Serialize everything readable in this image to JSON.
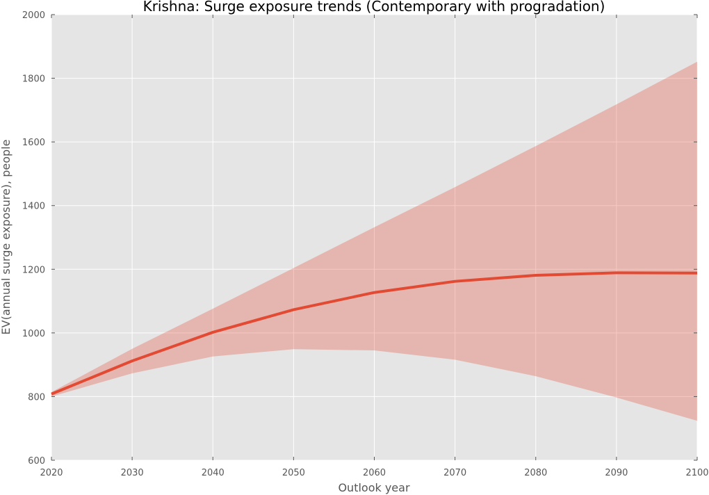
{
  "chart_data": {
    "type": "line",
    "title": "Krishna: Surge exposure trends (Contemporary with progradation)",
    "xlabel": "Outlook year",
    "ylabel": "EV(annual surge exposure), people",
    "xlim": [
      2020,
      2100
    ],
    "ylim": [
      600,
      2000
    ],
    "xticks": [
      2020,
      2030,
      2040,
      2050,
      2060,
      2070,
      2080,
      2090,
      2100
    ],
    "yticks": [
      600,
      800,
      1000,
      1200,
      1400,
      1600,
      1800,
      2000
    ],
    "grid": true,
    "x": [
      2020,
      2030,
      2040,
      2050,
      2060,
      2070,
      2080,
      2090,
      2100
    ],
    "series": [
      {
        "values": [
          808,
          912,
          1002,
          1073,
          1127,
          1162,
          1181,
          1189,
          1188
        ]
      }
    ],
    "band": {
      "lower": [
        800,
        873,
        926,
        949,
        945,
        916,
        864,
        797,
        724
      ],
      "upper": [
        814,
        950,
        1076,
        1204,
        1332,
        1458,
        1587,
        1718,
        1852
      ]
    },
    "colors": {
      "line": "#e24a33",
      "band": "#e24a33",
      "background": "#e5e5e5",
      "grid": "#ffffff"
    }
  }
}
